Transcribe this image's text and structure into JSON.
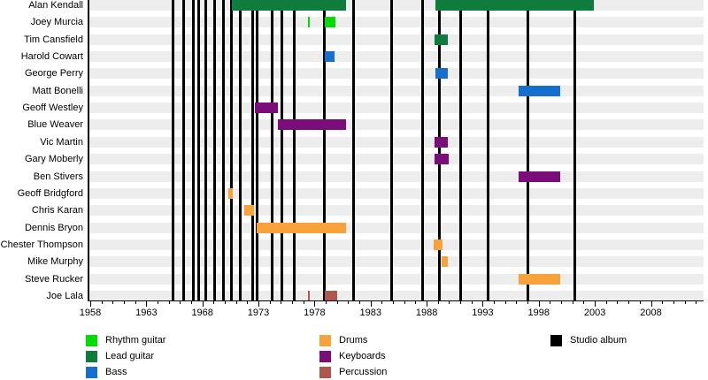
{
  "chart_data": {
    "type": "timeline",
    "description": "Band membership timeline (gantt-style) with studio album release lines",
    "x_axis": {
      "min_year": 1958,
      "max_year": 2013,
      "tick_step_minor": 1,
      "tick_step_major": 5,
      "tick_labels": [
        "1958",
        "1963",
        "1968",
        "1973",
        "1978",
        "1983",
        "1988",
        "1993",
        "1998",
        "2003",
        "2008"
      ],
      "tick_label_years": [
        1958,
        1963,
        1968,
        1973,
        1978,
        1983,
        1988,
        1993,
        1998,
        2003,
        2008
      ]
    },
    "colors": {
      "rhythm": "#00dd00",
      "lead": "#0e7c3c",
      "bass": "#1470cc",
      "drums": "#f7a23a",
      "keyboards": "#7b0d7b",
      "percussion": "#ae574e",
      "album": "#000000",
      "row_band": "#ededed"
    },
    "members": [
      {
        "name": "Alan Kendall",
        "role": "lead",
        "periods": [
          {
            "start": 1970.6,
            "end": 1980.8
          },
          {
            "start": 1988.8,
            "end": 2002.9
          }
        ]
      },
      {
        "name": "Joey Murcia",
        "role": "rhythm",
        "periods": [
          {
            "start": 1977.4,
            "end": 1977.6
          },
          {
            "start": 1978.9,
            "end": 1979.9
          }
        ]
      },
      {
        "name": "Tim Cansfield",
        "role": "lead",
        "periods": [
          {
            "start": 1988.7,
            "end": 1989.9
          }
        ]
      },
      {
        "name": "Harold Cowart",
        "role": "bass",
        "periods": [
          {
            "start": 1978.9,
            "end": 1979.8
          }
        ]
      },
      {
        "name": "George Perry",
        "role": "bass",
        "periods": [
          {
            "start": 1988.8,
            "end": 1989.9
          }
        ]
      },
      {
        "name": "Matt Bonelli",
        "role": "bass",
        "periods": [
          {
            "start": 1996.2,
            "end": 1999.9
          }
        ]
      },
      {
        "name": "Geoff Westley",
        "role": "keyboards",
        "periods": [
          {
            "start": 1972.7,
            "end": 1974.7
          }
        ]
      },
      {
        "name": "Blue Weaver",
        "role": "keyboards",
        "periods": [
          {
            "start": 1974.7,
            "end": 1980.8
          }
        ]
      },
      {
        "name": "Vic Martin",
        "role": "keyboards",
        "periods": [
          {
            "start": 1988.7,
            "end": 1989.9
          }
        ]
      },
      {
        "name": "Gary Moberly",
        "role": "keyboards",
        "periods": [
          {
            "start": 1988.7,
            "end": 1990.0
          }
        ]
      },
      {
        "name": "Ben Stivers",
        "role": "keyboards",
        "periods": [
          {
            "start": 1996.2,
            "end": 1999.9
          }
        ]
      },
      {
        "name": "Geoff Bridgford",
        "role": "drums",
        "periods": [
          {
            "start": 1970.3,
            "end": 1970.7
          }
        ]
      },
      {
        "name": "Chris Karan",
        "role": "drums",
        "periods": [
          {
            "start": 1971.7,
            "end": 1972.6
          }
        ]
      },
      {
        "name": "Dennis Bryon",
        "role": "drums",
        "periods": [
          {
            "start": 1972.8,
            "end": 1980.8
          }
        ]
      },
      {
        "name": "Chester Thompson",
        "role": "drums",
        "periods": [
          {
            "start": 1988.6,
            "end": 1989.4
          }
        ]
      },
      {
        "name": "Mike Murphy",
        "role": "drums",
        "periods": [
          {
            "start": 1989.3,
            "end": 1989.9
          }
        ]
      },
      {
        "name": "Steve Rucker",
        "role": "drums",
        "periods": [
          {
            "start": 1996.2,
            "end": 1999.9
          }
        ]
      },
      {
        "name": "Joe Lala",
        "role": "percussion",
        "periods": [
          {
            "start": 1977.4,
            "end": 1977.6
          },
          {
            "start": 1978.9,
            "end": 1980.0
          }
        ]
      }
    ],
    "album_line_years": [
      1965.4,
      1966.3,
      1967.2,
      1967.7,
      1968.3,
      1969.1,
      1969.9,
      1970.6,
      1971.4,
      1972.5,
      1972.9,
      1974.2,
      1975.1,
      1976.2,
      1978.9,
      1981.5,
      1984.9,
      1987.6,
      1989.1,
      1991.0,
      1993.5,
      1997.0,
      2001.2
    ],
    "legend": {
      "columns": [
        {
          "items": [
            {
              "label": "Rhythm guitar",
              "key": "rhythm"
            },
            {
              "label": "Lead guitar",
              "key": "lead"
            },
            {
              "label": "Bass",
              "key": "bass"
            }
          ]
        },
        {
          "items": [
            {
              "label": "Drums",
              "key": "drums"
            },
            {
              "label": "Keyboards",
              "key": "keyboards"
            },
            {
              "label": "Percussion",
              "key": "percussion"
            }
          ]
        },
        {
          "items": [
            {
              "label": "Studio album",
              "key": "album"
            }
          ]
        }
      ]
    }
  }
}
